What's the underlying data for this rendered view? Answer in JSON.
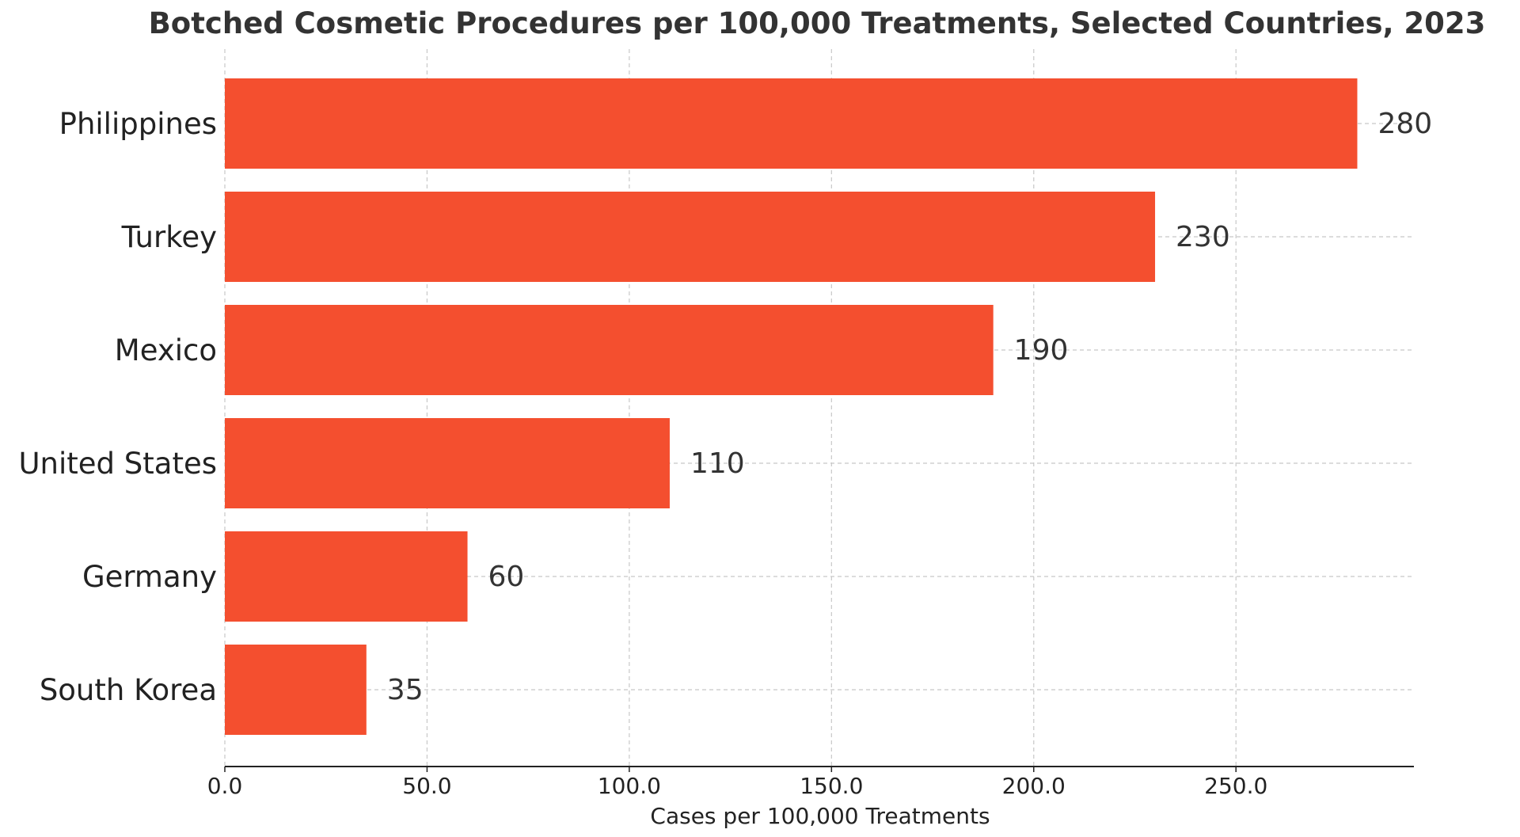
{
  "chart_data": {
    "type": "bar",
    "orientation": "horizontal",
    "title": "Botched Cosmetic Procedures per 100,000 Treatments, Selected Countries, 2023",
    "xlabel": "Cases per 100,000 Treatments",
    "ylabel": "",
    "categories": [
      "Philippines",
      "Turkey",
      "Mexico",
      "United States",
      "Germany",
      "South Korea"
    ],
    "values": [
      280,
      230,
      190,
      110,
      60,
      35
    ],
    "value_labels": [
      "280",
      "230",
      "190",
      "110",
      "60",
      "35"
    ],
    "xlim": [
      0,
      294
    ],
    "xticks": [
      0,
      50,
      100,
      150,
      200,
      250
    ],
    "xtick_labels": [
      "0.0",
      "50.0",
      "100.0",
      "150.0",
      "200.0",
      "250.0"
    ],
    "grid": true,
    "bar_color": "#f44f2f"
  }
}
